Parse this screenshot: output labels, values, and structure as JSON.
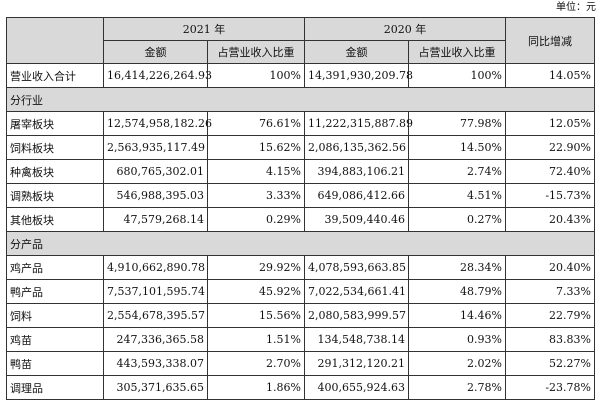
{
  "unit_label": "单位：元",
  "header": {
    "year_2021": "2021 年",
    "year_2020": "2020 年",
    "yoy": "同比增减",
    "amount": "金额",
    "share": "占营业收入比重"
  },
  "total": [
    "营业收入合计",
    "16,414,226,264.93",
    "100%",
    "14,391,930,209.78",
    "100%",
    "14.05%"
  ],
  "sections": [
    {
      "title": "分行业",
      "rows": [
        [
          "屠宰板块",
          "12,574,958,182.26",
          "76.61%",
          "11,222,315,887.89",
          "77.98%",
          "12.05%"
        ],
        [
          "饲料板块",
          "2,563,935,117.49",
          "15.62%",
          "2,086,135,362.56",
          "14.50%",
          "22.90%"
        ],
        [
          "种禽板块",
          "680,765,302.01",
          "4.15%",
          "394,883,106.21",
          "2.74%",
          "72.40%"
        ],
        [
          "调熟板块",
          "546,988,395.03",
          "3.33%",
          "649,086,412.66",
          "4.51%",
          "-15.73%"
        ],
        [
          "其他板块",
          "47,579,268.14",
          "0.29%",
          "39,509,440.46",
          "0.27%",
          "20.43%"
        ]
      ]
    },
    {
      "title": "分产品",
      "rows": [
        [
          "鸡产品",
          "4,910,662,890.78",
          "29.92%",
          "4,078,593,663.85",
          "28.34%",
          "20.40%"
        ],
        [
          "鸭产品",
          "7,537,101,595.74",
          "45.92%",
          "7,022,534,661.41",
          "48.79%",
          "7.33%"
        ],
        [
          "饲料",
          "2,554,678,395.57",
          "15.56%",
          "2,080,583,999.57",
          "14.46%",
          "22.79%"
        ],
        [
          "鸡苗",
          "247,336,365.58",
          "1.51%",
          "134,548,738.14",
          "0.93%",
          "83.83%"
        ],
        [
          "鸭苗",
          "443,593,338.07",
          "2.70%",
          "291,312,120.21",
          "2.02%",
          "52.27%"
        ],
        [
          "调理品",
          "305,371,635.65",
          "1.86%",
          "400,655,924.63",
          "2.78%",
          "-23.78%"
        ]
      ]
    }
  ]
}
